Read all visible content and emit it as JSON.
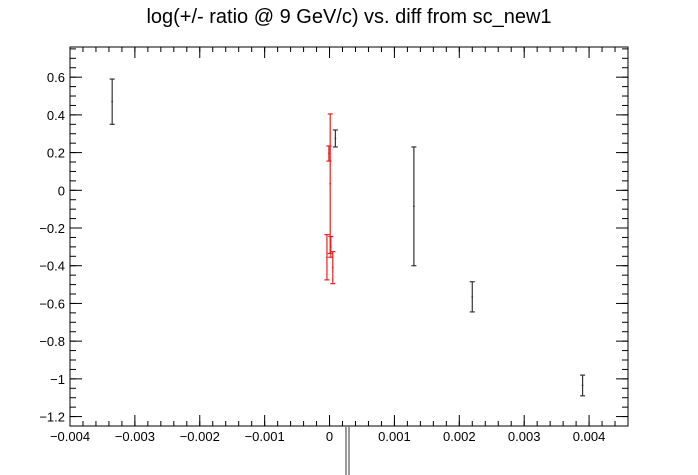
{
  "chart_data": {
    "type": "scatter",
    "title": "log(+/- ratio @ 9 GeV/c) vs. diff from sc_new1",
    "xlabel": "",
    "ylabel": "",
    "xlim": [
      -0.004,
      0.0046
    ],
    "ylim": [
      -1.25,
      0.76
    ],
    "x_ticks": [
      -0.004,
      -0.003,
      -0.002,
      -0.001,
      0,
      0.001,
      0.002,
      0.003,
      0.004
    ],
    "x_tick_labels": [
      "−0.004",
      "−0.003",
      "−0.002",
      "−0.001",
      "0",
      "0.001",
      "0.002",
      "0.003",
      "0.004"
    ],
    "y_ticks": [
      0.6,
      0.4,
      0.2,
      0,
      -0.2,
      -0.4,
      -0.6,
      -0.8,
      -1,
      -1.2
    ],
    "y_tick_labels": [
      "0.6",
      "0.4",
      "0.2",
      "0",
      "−0.2",
      "−0.4",
      "−0.6",
      "−0.8",
      "−1",
      "−1.2"
    ],
    "grid": false,
    "series": [
      {
        "color": "#333333",
        "points": [
          {
            "x": -0.00335,
            "y": 0.47,
            "err": 0.12
          },
          {
            "x": 9e-05,
            "y": 0.275,
            "err": 0.045
          },
          {
            "x": 0.0013,
            "y": -0.085,
            "err": 0.315
          },
          {
            "x": 0.0022,
            "y": -0.565,
            "err": 0.08
          },
          {
            "x": 0.0039,
            "y": -1.035,
            "err": 0.055
          }
        ]
      },
      {
        "color": "#e8201f",
        "points": [
          {
            "x": -1e-05,
            "y": 0.195,
            "err": 0.04
          },
          {
            "x": 1e-05,
            "y": 0.035,
            "err": 0.37
          },
          {
            "x": -4e-05,
            "y": -0.355,
            "err": 0.12
          },
          {
            "x": 2e-05,
            "y": -0.3,
            "err": 0.055
          },
          {
            "x": 5e-05,
            "y": -0.41,
            "err": 0.085
          }
        ]
      }
    ]
  }
}
